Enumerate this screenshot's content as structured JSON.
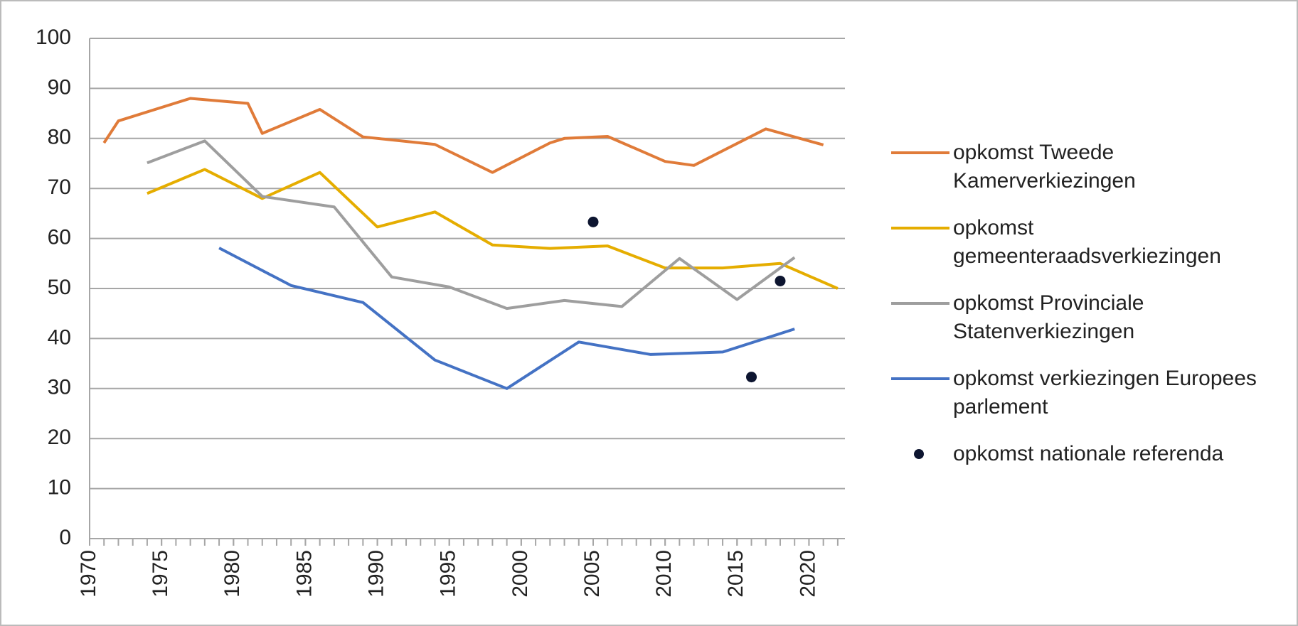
{
  "chart_data": {
    "type": "line",
    "xlim": [
      1970,
      2022.5
    ],
    "xticks": [
      1970,
      1975,
      1980,
      1985,
      1990,
      1995,
      2000,
      2005,
      2010,
      2015,
      2020
    ],
    "ylim": [
      0,
      100
    ],
    "yticks": [
      0,
      10,
      20,
      30,
      40,
      50,
      60,
      70,
      80,
      90,
      100
    ],
    "grid": true,
    "legend": "right",
    "series": [
      {
        "name": "opkomst Tweede Kamerverkiezingen",
        "type": "line",
        "color": "#e07b39",
        "x": [
          1971,
          1972,
          1977,
          1981,
          1982,
          1986,
          1989,
          1994,
          1998,
          2002,
          2003,
          2006,
          2010,
          2012,
          2017,
          2021
        ],
        "values": [
          79.1,
          83.5,
          88.0,
          87.0,
          81.0,
          85.8,
          80.3,
          78.8,
          73.2,
          79.1,
          80.0,
          80.4,
          75.4,
          74.6,
          81.9,
          78.7
        ]
      },
      {
        "name": "opkomst gemeenteraadsverkiezingen",
        "type": "line",
        "color": "#e5ad00",
        "x": [
          1974,
          1978,
          1982,
          1986,
          1990,
          1994,
          1998,
          2002,
          2006,
          2010,
          2014,
          2018,
          2022
        ],
        "values": [
          69.0,
          73.8,
          68.0,
          73.2,
          62.3,
          65.3,
          58.7,
          58.0,
          58.5,
          54.1,
          54.1,
          55.0,
          50.0
        ]
      },
      {
        "name": "opkomst Provinciale Statenverkiezingen",
        "type": "line",
        "color": "#9e9e9e",
        "x": [
          1974,
          1978,
          1982,
          1987,
          1991,
          1995,
          1999,
          2003,
          2007,
          2011,
          2015,
          2019
        ],
        "values": [
          75.1,
          79.5,
          68.4,
          66.3,
          52.3,
          50.3,
          46.0,
          47.6,
          46.4,
          56.0,
          47.8,
          56.2
        ]
      },
      {
        "name": "opkomst verkiezingen Europees parlement",
        "type": "line",
        "color": "#4472c4",
        "x": [
          1979,
          1984,
          1989,
          1994,
          1999,
          2004,
          2009,
          2014,
          2019
        ],
        "values": [
          58.1,
          50.6,
          47.2,
          35.7,
          30.0,
          39.3,
          36.8,
          37.3,
          41.9
        ]
      },
      {
        "name": "opkomst nationale referenda",
        "type": "scatter",
        "color": "#0d1530",
        "x": [
          2005,
          2016,
          2018
        ],
        "values": [
          63.3,
          32.3,
          51.5
        ]
      }
    ]
  }
}
